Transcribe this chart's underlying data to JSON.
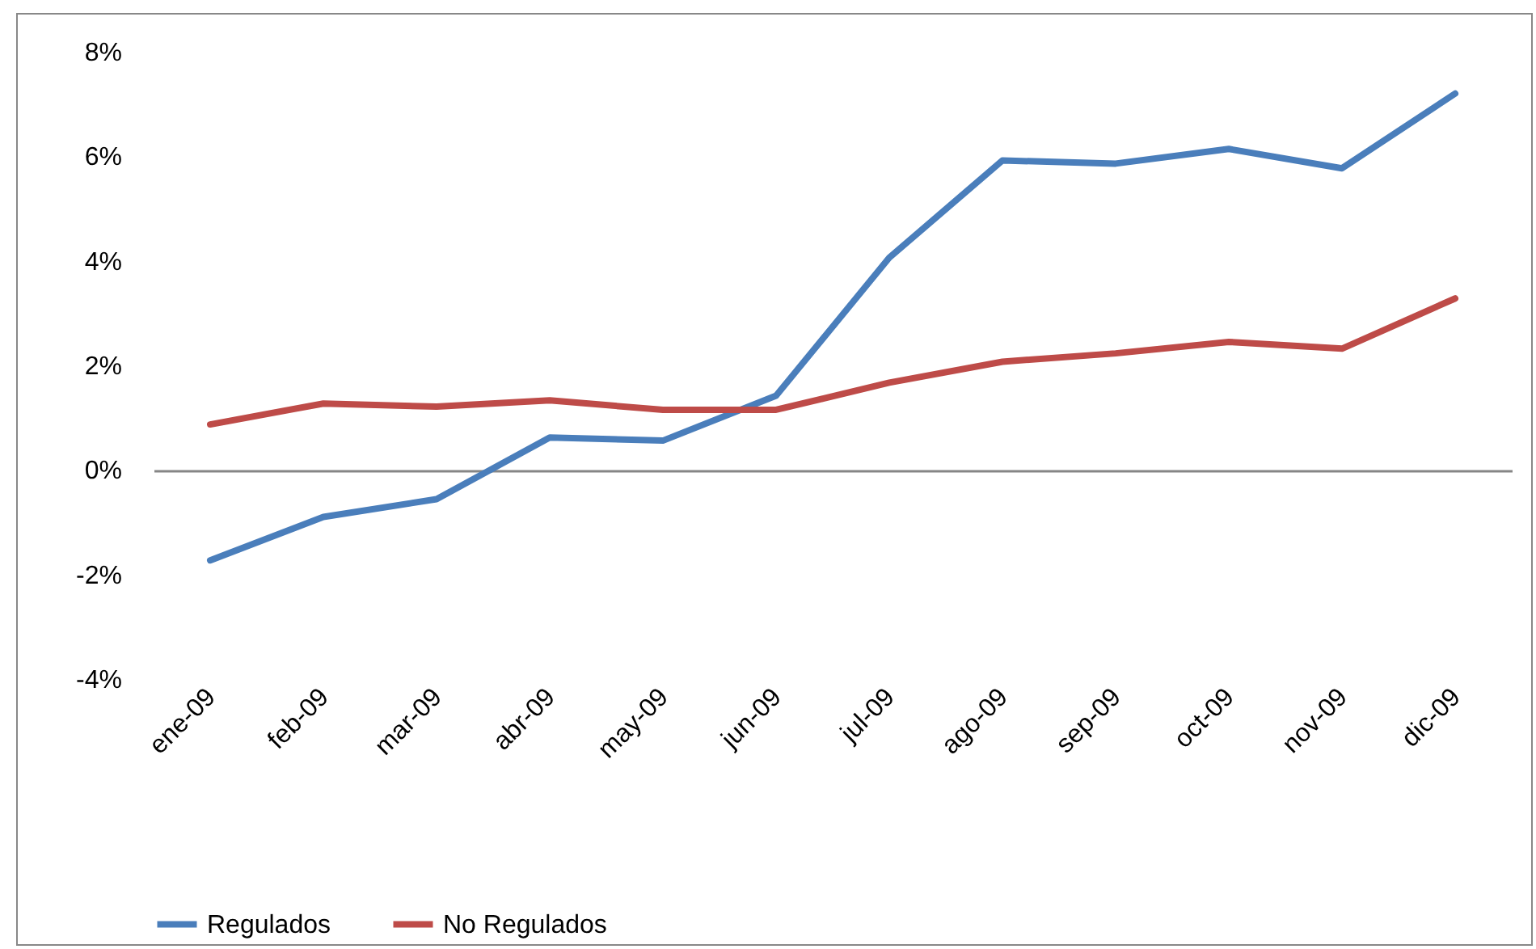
{
  "chart_data": {
    "type": "line",
    "categories": [
      "ene-09",
      "feb-09",
      "mar-09",
      "abr-09",
      "may-09",
      "jun-09",
      "jul-09",
      "ago-09",
      "sep-09",
      "oct-09",
      "nov-09",
      "dic-09"
    ],
    "series": [
      {
        "name": "Regulados",
        "color": "#4a7ebb",
        "values": [
          -1.73,
          -0.9,
          -0.56,
          0.62,
          0.56,
          1.42,
          4.06,
          5.92,
          5.86,
          6.14,
          5.77,
          7.2
        ]
      },
      {
        "name": "No Regulados",
        "color": "#be4b48",
        "values": [
          0.87,
          1.27,
          1.21,
          1.33,
          1.15,
          1.15,
          1.67,
          2.07,
          2.23,
          2.45,
          2.32,
          3.28
        ]
      }
    ],
    "ylim": [
      -4,
      8
    ],
    "yticks": [
      {
        "value": -4,
        "label": "-4%"
      },
      {
        "value": -2,
        "label": "-2%"
      },
      {
        "value": 0,
        "label": "0%"
      },
      {
        "value": 2,
        "label": "2%"
      },
      {
        "value": 4,
        "label": "4%"
      },
      {
        "value": 6,
        "label": "6%"
      },
      {
        "value": 8,
        "label": "8%"
      }
    ],
    "legend": "bottom",
    "marker": "none",
    "line_style": "solid"
  }
}
